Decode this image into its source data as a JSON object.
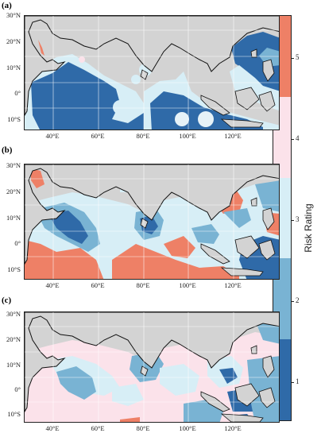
{
  "panels": [
    {
      "label": "(a)",
      "lat_ticks": [
        "30°N",
        "20°N",
        "10°N",
        "0°",
        "10°S"
      ],
      "lon_ticks": [
        "40°E",
        "60°E",
        "80°E",
        "100°E",
        "120°E"
      ]
    },
    {
      "label": "(b)",
      "lat_ticks": [
        "30°N",
        "20°N",
        "10°N",
        "0°",
        "10°S"
      ],
      "lon_ticks": [
        "40°E",
        "60°E",
        "80°E",
        "100°E",
        "120°E"
      ]
    },
    {
      "label": "(c)",
      "lat_ticks": [
        "30°N",
        "20°N",
        "10°N",
        "0°",
        "10°S"
      ],
      "lon_ticks": [
        "40°E",
        "60°E",
        "80°E",
        "100°E",
        "120°E"
      ]
    }
  ],
  "colorbar": {
    "label": "Risk Rating",
    "ticks": [
      "1",
      "2",
      "3",
      "4",
      "5"
    ],
    "colors": [
      "#2f6aa8",
      "#79b3d3",
      "#d7eef6",
      "#fbe2ea",
      "#ee8066"
    ]
  },
  "map_colors": {
    "land": "#d3d3d3",
    "grid": "#ffffff",
    "coast": "#111111"
  }
}
